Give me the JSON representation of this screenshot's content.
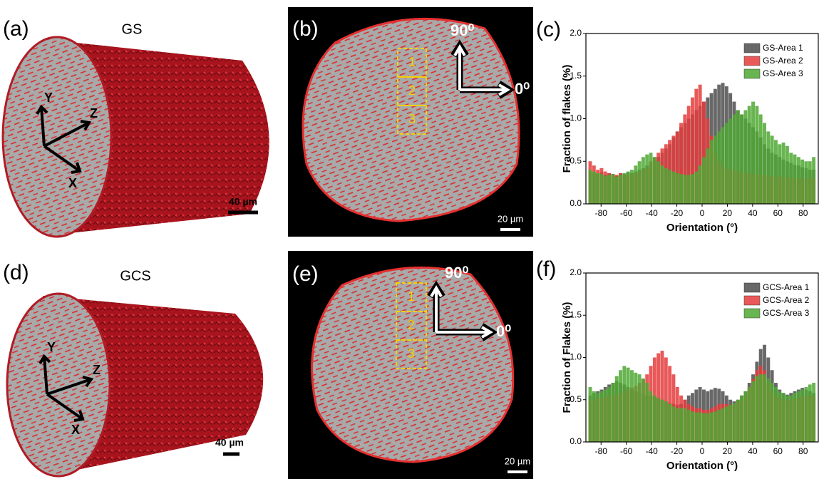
{
  "figure": {
    "a": {
      "label": "(a)",
      "sample": "GS",
      "axes": [
        "Y",
        "Z",
        "X"
      ],
      "scale_bar": "40 µm"
    },
    "b": {
      "label": "(b)",
      "regions": [
        "1",
        "2",
        "3"
      ],
      "angles": [
        "90⁰",
        "0⁰"
      ],
      "scale_bar": "20 µm"
    },
    "d": {
      "label": "(d)",
      "sample": "GCS",
      "axes": [
        "Y",
        "Z",
        "X"
      ],
      "scale_bar": "40 µm"
    },
    "e": {
      "label": "(e)",
      "regions": [
        "1",
        "2",
        "3"
      ],
      "angles": [
        "90⁰",
        "0⁰"
      ],
      "scale_bar": "20 µm"
    }
  },
  "chart_data": [
    {
      "type": "histogram",
      "panel_label": "(c)",
      "xlabel": "Orientation (°)",
      "ylabel": "Fraction of flakes (%)",
      "bins": [
        -90,
        -87,
        -84,
        -81,
        -78,
        -75,
        -72,
        -69,
        -66,
        -63,
        -60,
        -57,
        -54,
        -51,
        -48,
        -45,
        -42,
        -39,
        -36,
        -33,
        -30,
        -27,
        -24,
        -21,
        -18,
        -15,
        -12,
        -9,
        -6,
        -3,
        0,
        3,
        6,
        9,
        12,
        15,
        18,
        21,
        24,
        27,
        30,
        33,
        36,
        39,
        42,
        45,
        48,
        51,
        54,
        57,
        60,
        63,
        66,
        69,
        72,
        75,
        78,
        81,
        84,
        87,
        90
      ],
      "series": [
        {
          "name": "GS-Area 1",
          "color": "#4d4d4d",
          "values": [
            0.38,
            0.36,
            0.35,
            0.37,
            0.34,
            0.36,
            0.35,
            0.33,
            0.36,
            0.35,
            0.37,
            0.36,
            0.38,
            0.4,
            0.42,
            0.45,
            0.48,
            0.52,
            0.55,
            0.6,
            0.65,
            0.7,
            0.78,
            0.85,
            0.9,
            0.95,
            1.0,
            1.05,
            1.1,
            1.15,
            1.2,
            1.25,
            1.3,
            1.35,
            1.4,
            1.42,
            1.38,
            1.3,
            1.2,
            1.1,
            1.05,
            1.0,
            0.95,
            0.9,
            0.85,
            0.78,
            0.7,
            0.65,
            0.6,
            0.58,
            0.55,
            0.52,
            0.5,
            0.48,
            0.46,
            0.45,
            0.43,
            0.42,
            0.4,
            0.4
          ]
        },
        {
          "name": "GS-Area 2",
          "color": "#e53c3c",
          "values": [
            0.5,
            0.45,
            0.4,
            0.42,
            0.38,
            0.36,
            0.35,
            0.34,
            0.36,
            0.33,
            0.35,
            0.34,
            0.36,
            0.38,
            0.4,
            0.42,
            0.5,
            0.55,
            0.6,
            0.65,
            0.7,
            0.75,
            0.8,
            0.85,
            0.95,
            1.05,
            1.15,
            1.25,
            1.35,
            1.4,
            1.2,
            1.0,
            0.8,
            0.6,
            0.5,
            0.45,
            0.42,
            0.4,
            0.4,
            0.38,
            0.38,
            0.36,
            0.36,
            0.35,
            0.35,
            0.34,
            0.34,
            0.33,
            0.33,
            0.32,
            0.32,
            0.32,
            0.31,
            0.31,
            0.3,
            0.3,
            0.3,
            0.3,
            0.3,
            0.3
          ]
        },
        {
          "name": "GS-Area 3",
          "color": "#4fa832",
          "values": [
            0.4,
            0.38,
            0.36,
            0.35,
            0.33,
            0.34,
            0.35,
            0.32,
            0.34,
            0.36,
            0.38,
            0.4,
            0.45,
            0.5,
            0.55,
            0.58,
            0.6,
            0.55,
            0.5,
            0.45,
            0.42,
            0.4,
            0.38,
            0.36,
            0.35,
            0.34,
            0.34,
            0.35,
            0.38,
            0.45,
            0.55,
            0.65,
            0.75,
            0.8,
            0.85,
            0.9,
            0.95,
            1.0,
            1.05,
            1.1,
            1.05,
            1.1,
            1.15,
            1.2,
            1.15,
            1.05,
            0.95,
            0.85,
            0.8,
            0.75,
            0.7,
            0.72,
            0.68,
            0.6,
            0.58,
            0.55,
            0.52,
            0.5,
            0.5,
            0.55
          ]
        }
      ],
      "xlim": [
        -92,
        92
      ],
      "ylim": [
        0,
        2
      ],
      "xticks": [
        -80,
        -60,
        -40,
        -20,
        0,
        20,
        40,
        60,
        80
      ],
      "yticks": [
        {
          "value": 0,
          "label": "0.0"
        },
        {
          "value": 0.5,
          "label": "0.5"
        },
        {
          "value": 1,
          "label": "1.0"
        },
        {
          "value": 1.5,
          "label": "1.5"
        },
        {
          "value": 2,
          "label": "2.0"
        }
      ],
      "legend": "upper right"
    },
    {
      "type": "histogram",
      "panel_label": "(f)",
      "xlabel": "Orientation (°)",
      "ylabel": "Fraction of Flakes (%)",
      "bins": [
        -90,
        -87,
        -84,
        -81,
        -78,
        -75,
        -72,
        -69,
        -66,
        -63,
        -60,
        -57,
        -54,
        -51,
        -48,
        -45,
        -42,
        -39,
        -36,
        -33,
        -30,
        -27,
        -24,
        -21,
        -18,
        -15,
        -12,
        -9,
        -6,
        -3,
        0,
        3,
        6,
        9,
        12,
        15,
        18,
        21,
        24,
        27,
        30,
        33,
        36,
        39,
        42,
        45,
        48,
        51,
        54,
        57,
        60,
        63,
        66,
        69,
        72,
        75,
        78,
        81,
        84,
        87,
        90
      ],
      "series": [
        {
          "name": "GCS-Area 1",
          "color": "#4d4d4d",
          "values": [
            0.55,
            0.58,
            0.6,
            0.62,
            0.65,
            0.68,
            0.7,
            0.72,
            0.7,
            0.68,
            0.65,
            0.62,
            0.6,
            0.58,
            0.56,
            0.55,
            0.55,
            0.54,
            0.52,
            0.5,
            0.48,
            0.46,
            0.45,
            0.44,
            0.45,
            0.5,
            0.55,
            0.58,
            0.62,
            0.65,
            0.62,
            0.6,
            0.62,
            0.64,
            0.63,
            0.6,
            0.55,
            0.5,
            0.48,
            0.5,
            0.55,
            0.6,
            0.7,
            0.8,
            0.95,
            1.1,
            1.15,
            1.0,
            0.85,
            0.7,
            0.62,
            0.58,
            0.56,
            0.58,
            0.6,
            0.62,
            0.64,
            0.62,
            0.6,
            0.58
          ]
        },
        {
          "name": "GCS-Area 2",
          "color": "#e53c3c",
          "values": [
            0.5,
            0.5,
            0.52,
            0.52,
            0.53,
            0.55,
            0.55,
            0.56,
            0.58,
            0.6,
            0.62,
            0.64,
            0.66,
            0.7,
            0.75,
            0.8,
            0.9,
            1.0,
            1.05,
            1.08,
            1.0,
            0.9,
            0.8,
            0.65,
            0.55,
            0.5,
            0.45,
            0.42,
            0.4,
            0.4,
            0.38,
            0.38,
            0.4,
            0.42,
            0.45,
            0.45,
            0.45,
            0.44,
            0.45,
            0.48,
            0.5,
            0.55,
            0.65,
            0.75,
            0.85,
            0.9,
            0.85,
            0.7,
            0.6,
            0.55,
            0.52,
            0.5,
            0.5,
            0.5,
            0.52,
            0.52,
            0.54,
            0.55,
            0.55,
            0.55
          ]
        },
        {
          "name": "GCS-Area 3",
          "color": "#4fa832",
          "values": [
            0.65,
            0.6,
            0.58,
            0.6,
            0.62,
            0.65,
            0.7,
            0.78,
            0.85,
            0.9,
            0.88,
            0.85,
            0.82,
            0.8,
            0.75,
            0.7,
            0.6,
            0.55,
            0.52,
            0.5,
            0.48,
            0.45,
            0.42,
            0.4,
            0.4,
            0.4,
            0.38,
            0.36,
            0.35,
            0.35,
            0.34,
            0.34,
            0.35,
            0.36,
            0.38,
            0.4,
            0.42,
            0.44,
            0.46,
            0.5,
            0.55,
            0.6,
            0.65,
            0.72,
            0.78,
            0.8,
            0.8,
            0.75,
            0.7,
            0.65,
            0.6,
            0.58,
            0.55,
            0.55,
            0.58,
            0.6,
            0.62,
            0.65,
            0.68,
            0.7
          ]
        }
      ],
      "xlim": [
        -92,
        92
      ],
      "ylim": [
        0,
        2
      ],
      "xticks": [
        -80,
        -60,
        -40,
        -20,
        0,
        20,
        40,
        60,
        80
      ],
      "yticks": [
        {
          "value": 0,
          "label": "0.0"
        },
        {
          "value": 0.5,
          "label": "0.5"
        },
        {
          "value": 1,
          "label": "1.0"
        },
        {
          "value": 1.5,
          "label": "1.5"
        },
        {
          "value": 2,
          "label": "2.0"
        }
      ],
      "legend": "upper right"
    }
  ]
}
